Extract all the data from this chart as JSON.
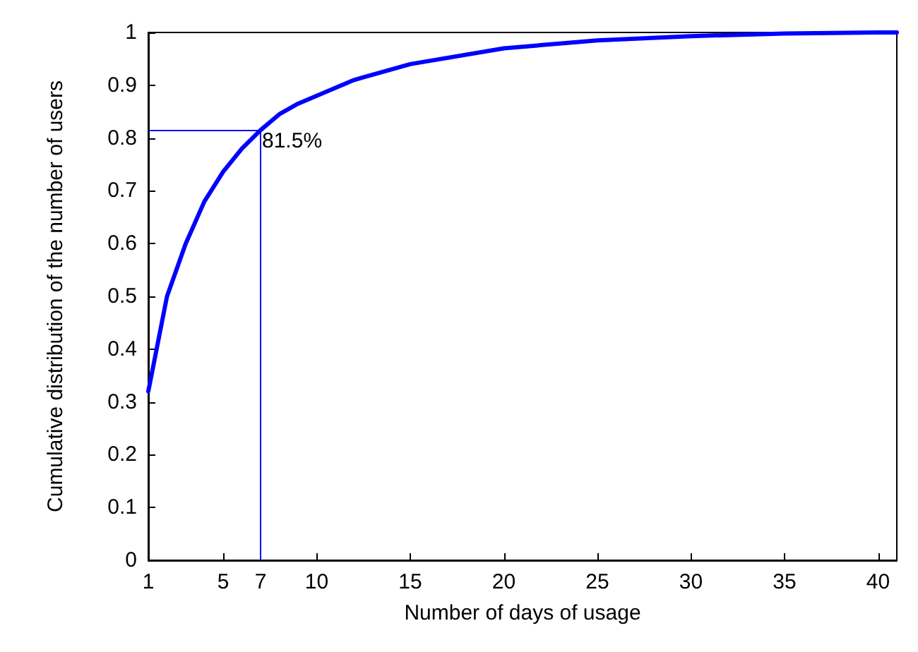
{
  "chart_data": {
    "type": "line",
    "xlabel": "Number of days of usage",
    "ylabel": "Cumulative distribution of the number of users",
    "x": [
      1,
      2,
      3,
      4,
      5,
      6,
      7,
      8,
      9,
      10,
      12,
      15,
      20,
      25,
      30,
      35,
      40,
      41
    ],
    "series": [
      {
        "color": "#0000ff",
        "values": [
          0.32,
          0.5,
          0.6,
          0.68,
          0.736,
          0.78,
          0.815,
          0.845,
          0.865,
          0.88,
          0.91,
          0.94,
          0.97,
          0.985,
          0.993,
          0.998,
          1,
          1
        ]
      }
    ],
    "xlim": [
      1,
      41
    ],
    "xticks": [
      1,
      5,
      7,
      10,
      15,
      20,
      25,
      30,
      35,
      40
    ],
    "ylim": [
      0,
      1
    ],
    "yticks": [
      0,
      0.1,
      0.2,
      0.3,
      0.4,
      0.5,
      0.6,
      0.7,
      0.8,
      0.9,
      1
    ],
    "ref_lines": [
      {
        "axis": "x",
        "value": 7,
        "color": "#0000ff"
      },
      {
        "axis": "y",
        "value": 0.815,
        "color": "#0000ff"
      }
    ],
    "annotations": [
      {
        "text": "81.5%",
        "x": 7,
        "y": 0.815
      }
    ],
    "grid": false,
    "marker": "none",
    "line_style": "solid"
  }
}
